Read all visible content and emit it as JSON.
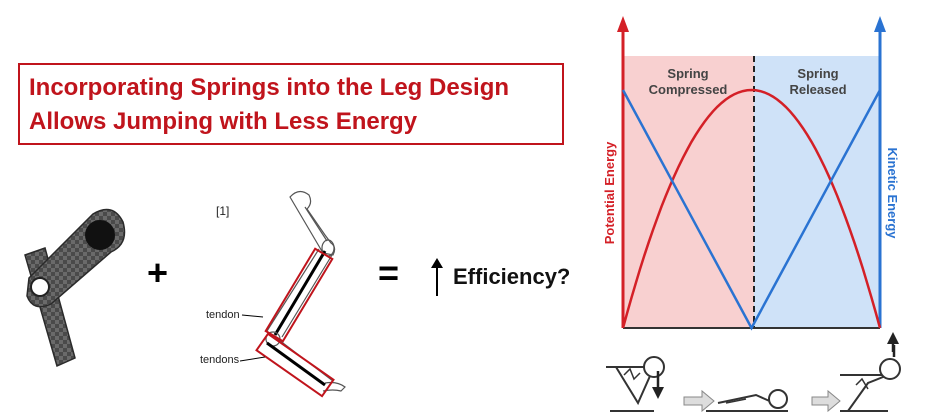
{
  "title": {
    "line1": "Incorporating Springs into the Leg Design",
    "line2": "Allows Jumping with Less Energy"
  },
  "equation": {
    "plus": "+",
    "equals": "=",
    "result": "Efficiency?"
  },
  "leg_diagram": {
    "ref": "[1]",
    "label_tendon": "tendon",
    "label_tendons": "tendons"
  },
  "chart": {
    "left_axis_label": "Potential Energy",
    "right_axis_label": "Kinetic Energy",
    "region_left": {
      "line1": "Spring",
      "line2": "Compressed",
      "color": "#f8d0d0"
    },
    "region_right": {
      "line1": "Spring",
      "line2": "Released",
      "color": "#cfe2f8"
    },
    "potential_color": "#d42027",
    "kinetic_color": "#2a73d2"
  },
  "chart_data": {
    "type": "line",
    "x": [
      0,
      0.1,
      0.2,
      0.3,
      0.4,
      0.5,
      0.6,
      0.7,
      0.8,
      0.9,
      1.0
    ],
    "series": [
      {
        "name": "Potential Energy",
        "values": [
          0.0,
          0.36,
          0.64,
          0.84,
          0.96,
          1.0,
          0.96,
          0.84,
          0.64,
          0.36,
          0.0
        ]
      },
      {
        "name": "Kinetic Energy",
        "values": [
          1.0,
          0.8,
          0.6,
          0.4,
          0.2,
          0.0,
          0.2,
          0.4,
          0.6,
          0.8,
          1.0
        ]
      }
    ],
    "divider_x": 0.5,
    "xlim": [
      0,
      1
    ],
    "ylim": [
      0,
      1
    ]
  },
  "colors": {
    "title_red": "#c0141c",
    "carbon_dark": "#3a3a3a",
    "tendon_box": "#c0141c"
  }
}
